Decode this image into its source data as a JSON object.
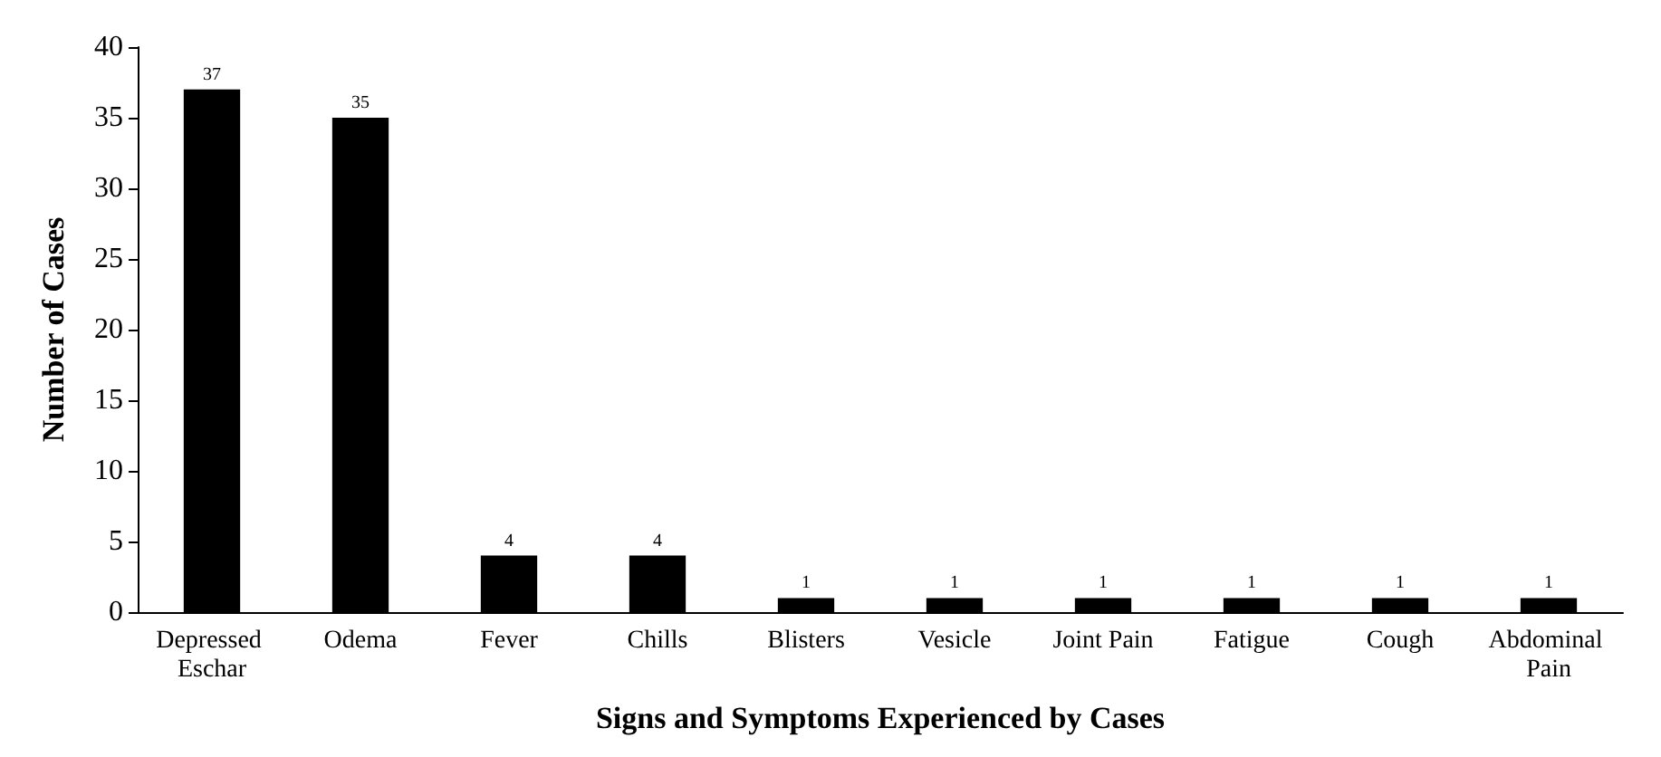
{
  "chart_data": {
    "type": "bar",
    "xlabel": "Signs and Symptoms Experienced by Cases",
    "ylabel": "Number of Cases",
    "categories": [
      "Depressed Eschar",
      "Odema",
      "Fever",
      "Chills",
      "Blisters",
      "Vesicle",
      "Joint Pain",
      "Fatigue",
      "Cough",
      "Abdominal Pain"
    ],
    "values": [
      37,
      35,
      4,
      4,
      1,
      1,
      1,
      1,
      1,
      1
    ],
    "color": "#000000",
    "ylim": [
      0,
      40
    ],
    "yticks": [
      0,
      5,
      10,
      15,
      20,
      25,
      30,
      35,
      40
    ],
    "grid": false,
    "data_labels": true
  }
}
